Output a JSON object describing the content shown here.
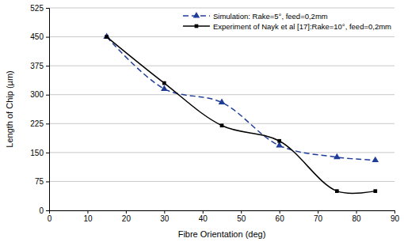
{
  "chart_data": {
    "type": "line",
    "x_label": "Fibre Orientation (deg)",
    "y_label": "Length of Chip (µm)",
    "x": [
      15,
      30,
      45,
      60,
      75,
      85
    ],
    "series": [
      {
        "name": "Simulation: Rake=5°, feed=0,2mm",
        "color": "#1f3c99",
        "marker": "triangle",
        "line_style": "dashed",
        "values": [
          450,
          315,
          280,
          168,
          138,
          130
        ]
      },
      {
        "name": "Experiment of Nayk et al [17]:Rake=10°, feed=0,2mm",
        "color": "#000000",
        "marker": "square",
        "line_style": "solid",
        "values": [
          450,
          330,
          220,
          180,
          50,
          50
        ]
      }
    ],
    "xlim": [
      0,
      90
    ],
    "xticks": [
      0,
      10,
      20,
      30,
      40,
      50,
      60,
      70,
      80,
      90
    ],
    "ylim": [
      0,
      525
    ],
    "yticks": [
      0,
      75,
      150,
      225,
      300,
      375,
      450,
      525
    ],
    "grid": true,
    "legend": "upper right"
  }
}
